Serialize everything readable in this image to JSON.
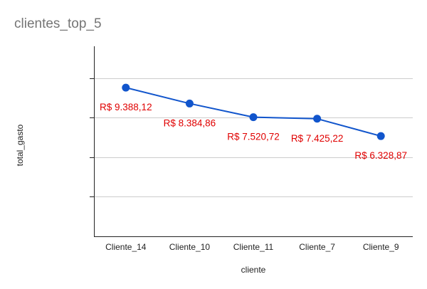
{
  "chart_data": {
    "type": "line",
    "title": "clientes_top_5",
    "xlabel": "cliente",
    "ylabel": "total_gasto",
    "categories": [
      "Cliente_14",
      "Cliente_10",
      "Cliente_11",
      "Cliente_7",
      "Cliente_9"
    ],
    "series": [
      {
        "values": [
          9388.12,
          8384.86,
          7520.72,
          7425.22,
          6328.87
        ],
        "data_labels": [
          "R$ 9.388,12",
          "R$ 8.384,86",
          "R$ 7.520,72",
          "R$ 7.425,22",
          "R$ 6.328,87"
        ],
        "color": "#1155cc",
        "label_color": "#e00000"
      }
    ],
    "ylim": [
      0,
      12000
    ],
    "y_tick_values": [
      0,
      2500,
      5000,
      7500,
      10000
    ],
    "y_tick_labels_shown": false,
    "grid": true,
    "legend": "none",
    "colors": {
      "gridline": "#cccccc",
      "axis": "#222222",
      "title": "#757575"
    }
  }
}
